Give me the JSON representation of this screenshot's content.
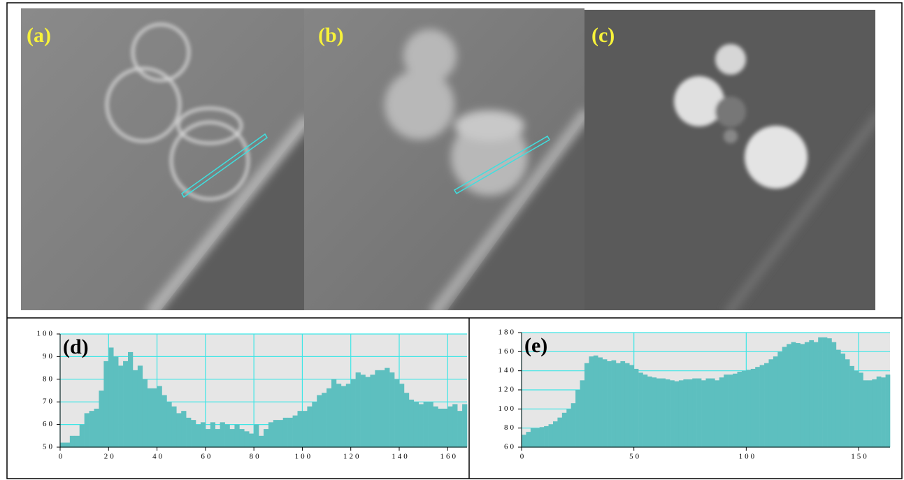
{
  "panels": [
    {
      "label": "(a)"
    },
    {
      "label": "(b)"
    },
    {
      "label": "(c)"
    }
  ],
  "chart_data": [
    {
      "type": "histogram",
      "title": "(d)",
      "color": "#5dbfbf",
      "grid": true,
      "bins": [
        0,
        2,
        4,
        6,
        8,
        10,
        12,
        14,
        16,
        18,
        20,
        22,
        24,
        26,
        28,
        30,
        32,
        34,
        36,
        38,
        40,
        42,
        44,
        46,
        48,
        50,
        52,
        54,
        56,
        58,
        60,
        62,
        64,
        66,
        68,
        70,
        72,
        74,
        76,
        78,
        80,
        82,
        84,
        86,
        88,
        90,
        92,
        94,
        96,
        98,
        100,
        102,
        104,
        106,
        108,
        110,
        112,
        114,
        116,
        118,
        120,
        122,
        124,
        126,
        128,
        130,
        132,
        134,
        136,
        138,
        140,
        142,
        144,
        146,
        148,
        150,
        152,
        154,
        156,
        158,
        160,
        162,
        164,
        166,
        168
      ],
      "values": [
        52,
        52,
        55,
        55,
        60,
        65,
        66,
        67,
        75,
        88,
        94,
        90,
        86,
        88,
        92,
        84,
        86,
        80,
        76,
        76,
        77,
        73,
        70,
        68,
        65,
        66,
        63,
        62,
        60,
        61,
        58,
        61,
        58,
        61,
        60,
        58,
        60,
        58,
        57,
        56,
        60,
        55,
        58,
        61,
        62,
        62,
        63,
        63,
        64,
        66,
        66,
        68,
        70,
        73,
        74,
        76,
        80,
        78,
        77,
        78,
        80,
        83,
        82,
        81,
        82,
        84,
        84,
        85,
        83,
        80,
        78,
        74,
        71,
        70,
        69,
        70,
        70,
        68,
        67,
        67,
        68,
        69,
        66,
        69
      ],
      "xlim": [
        0,
        168
      ],
      "xticks": [
        0,
        20,
        40,
        60,
        80,
        100,
        120,
        140,
        160
      ],
      "ylim": [
        50,
        100
      ],
      "yticks": [
        50,
        60,
        70,
        80,
        90,
        100
      ]
    },
    {
      "type": "histogram",
      "title": "(e)",
      "color": "#5dbfbf",
      "grid": true,
      "bins": [
        0,
        2,
        4,
        6,
        8,
        10,
        12,
        14,
        16,
        18,
        20,
        22,
        24,
        26,
        28,
        30,
        32,
        34,
        36,
        38,
        40,
        42,
        44,
        46,
        48,
        50,
        52,
        54,
        56,
        58,
        60,
        62,
        64,
        66,
        68,
        70,
        72,
        74,
        76,
        78,
        80,
        82,
        84,
        86,
        88,
        90,
        92,
        94,
        96,
        98,
        100,
        102,
        104,
        106,
        108,
        110,
        112,
        114,
        116,
        118,
        120,
        122,
        124,
        126,
        128,
        130,
        132,
        134,
        136,
        138,
        140,
        142,
        144,
        146,
        148,
        150,
        152,
        154,
        156,
        158,
        160,
        162,
        164
      ],
      "values": [
        73,
        76,
        80,
        80,
        81,
        82,
        84,
        87,
        91,
        96,
        100,
        106,
        120,
        130,
        148,
        155,
        156,
        154,
        152,
        150,
        151,
        148,
        150,
        148,
        146,
        142,
        138,
        136,
        134,
        133,
        132,
        132,
        131,
        130,
        129,
        130,
        131,
        131,
        132,
        132,
        130,
        132,
        132,
        130,
        133,
        136,
        136,
        137,
        139,
        140,
        141,
        142,
        144,
        146,
        148,
        152,
        155,
        160,
        165,
        168,
        170,
        169,
        168,
        170,
        172,
        170,
        175,
        175,
        174,
        170,
        162,
        158,
        152,
        145,
        140,
        138,
        130,
        130,
        131,
        134,
        133,
        136
      ],
      "xlim": [
        0,
        164
      ],
      "xticks": [
        0,
        50,
        100,
        150
      ],
      "ylim": [
        60,
        180
      ],
      "yticks": [
        60,
        80,
        100,
        120,
        140,
        160,
        180
      ]
    }
  ]
}
